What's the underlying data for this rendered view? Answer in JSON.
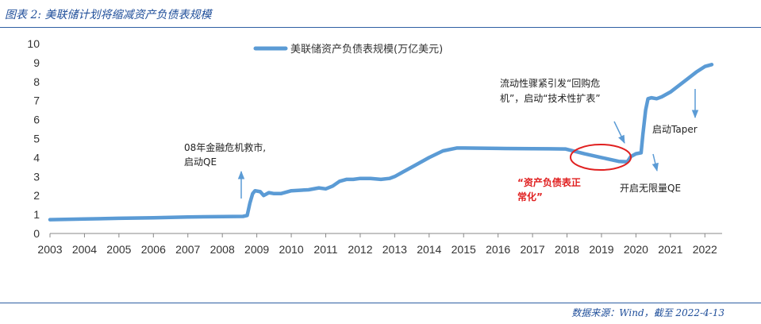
{
  "header": {
    "title": "图表 2: 美联储计划将缩减资产负债表规模"
  },
  "footer": {
    "source": "数据来源：Wind，截至 2022-4-13"
  },
  "colors": {
    "series": "#5b9bd5",
    "accent_red": "#e02020",
    "title_blue": "#1f4e9a"
  },
  "chart_data": {
    "type": "line",
    "title": "",
    "xlabel": "",
    "ylabel": "",
    "ylim": [
      0,
      10
    ],
    "xlim": [
      2003,
      2022.5
    ],
    "y_ticks": [
      "0",
      "1",
      "2",
      "3",
      "4",
      "5",
      "6",
      "7",
      "8",
      "9",
      "10"
    ],
    "x_ticks": [
      "2003",
      "2004",
      "2005",
      "2006",
      "2007",
      "2008",
      "2009",
      "2010",
      "2011",
      "2012",
      "2013",
      "2014",
      "2015",
      "2016",
      "2017",
      "2018",
      "2019",
      "2020",
      "2021",
      "2022"
    ],
    "grid": false,
    "legend_position": "top-center",
    "series": [
      {
        "name": "美联储资产负债表规模(万亿美元)",
        "points": [
          [
            2003.0,
            0.73
          ],
          [
            2004.0,
            0.76
          ],
          [
            2005.0,
            0.8
          ],
          [
            2006.0,
            0.83
          ],
          [
            2007.0,
            0.87
          ],
          [
            2008.0,
            0.89
          ],
          [
            2008.6,
            0.9
          ],
          [
            2008.72,
            0.95
          ],
          [
            2008.8,
            1.6
          ],
          [
            2008.88,
            2.1
          ],
          [
            2008.95,
            2.25
          ],
          [
            2009.1,
            2.2
          ],
          [
            2009.2,
            2.0
          ],
          [
            2009.35,
            2.15
          ],
          [
            2009.5,
            2.1
          ],
          [
            2009.7,
            2.1
          ],
          [
            2010.0,
            2.25
          ],
          [
            2010.5,
            2.3
          ],
          [
            2010.8,
            2.4
          ],
          [
            2011.0,
            2.35
          ],
          [
            2011.2,
            2.5
          ],
          [
            2011.4,
            2.75
          ],
          [
            2011.6,
            2.85
          ],
          [
            2011.8,
            2.85
          ],
          [
            2012.0,
            2.9
          ],
          [
            2012.3,
            2.9
          ],
          [
            2012.6,
            2.85
          ],
          [
            2012.85,
            2.9
          ],
          [
            2013.0,
            3.0
          ],
          [
            2013.3,
            3.3
          ],
          [
            2013.6,
            3.6
          ],
          [
            2014.0,
            4.0
          ],
          [
            2014.4,
            4.35
          ],
          [
            2014.8,
            4.5
          ],
          [
            2015.0,
            4.5
          ],
          [
            2016.0,
            4.48
          ],
          [
            2017.0,
            4.47
          ],
          [
            2017.5,
            4.46
          ],
          [
            2017.95,
            4.45
          ],
          [
            2018.5,
            4.2
          ],
          [
            2019.0,
            4.0
          ],
          [
            2019.5,
            3.8
          ],
          [
            2019.75,
            3.78
          ],
          [
            2019.85,
            4.05
          ],
          [
            2020.0,
            4.2
          ],
          [
            2020.15,
            4.25
          ],
          [
            2020.2,
            5.2
          ],
          [
            2020.28,
            6.5
          ],
          [
            2020.35,
            7.1
          ],
          [
            2020.45,
            7.15
          ],
          [
            2020.6,
            7.1
          ],
          [
            2020.75,
            7.2
          ],
          [
            2021.0,
            7.45
          ],
          [
            2021.25,
            7.8
          ],
          [
            2021.5,
            8.15
          ],
          [
            2021.75,
            8.5
          ],
          [
            2022.0,
            8.8
          ],
          [
            2022.2,
            8.9
          ]
        ]
      }
    ],
    "annotations": [
      {
        "lines": [
          "08年金融危机救市,",
          "启动QE"
        ],
        "style": "normal"
      },
      {
        "lines": [
          "流动性骤紧引发“回购危",
          "机”，启动“技术性扩表”"
        ],
        "style": "normal"
      },
      {
        "lines": [
          "“资产负债表正",
          "常化”"
        ],
        "style": "red"
      },
      {
        "lines": [
          "启动Taper"
        ],
        "style": "normal"
      },
      {
        "lines": [
          "开启无限量QE"
        ],
        "style": "normal"
      }
    ]
  }
}
